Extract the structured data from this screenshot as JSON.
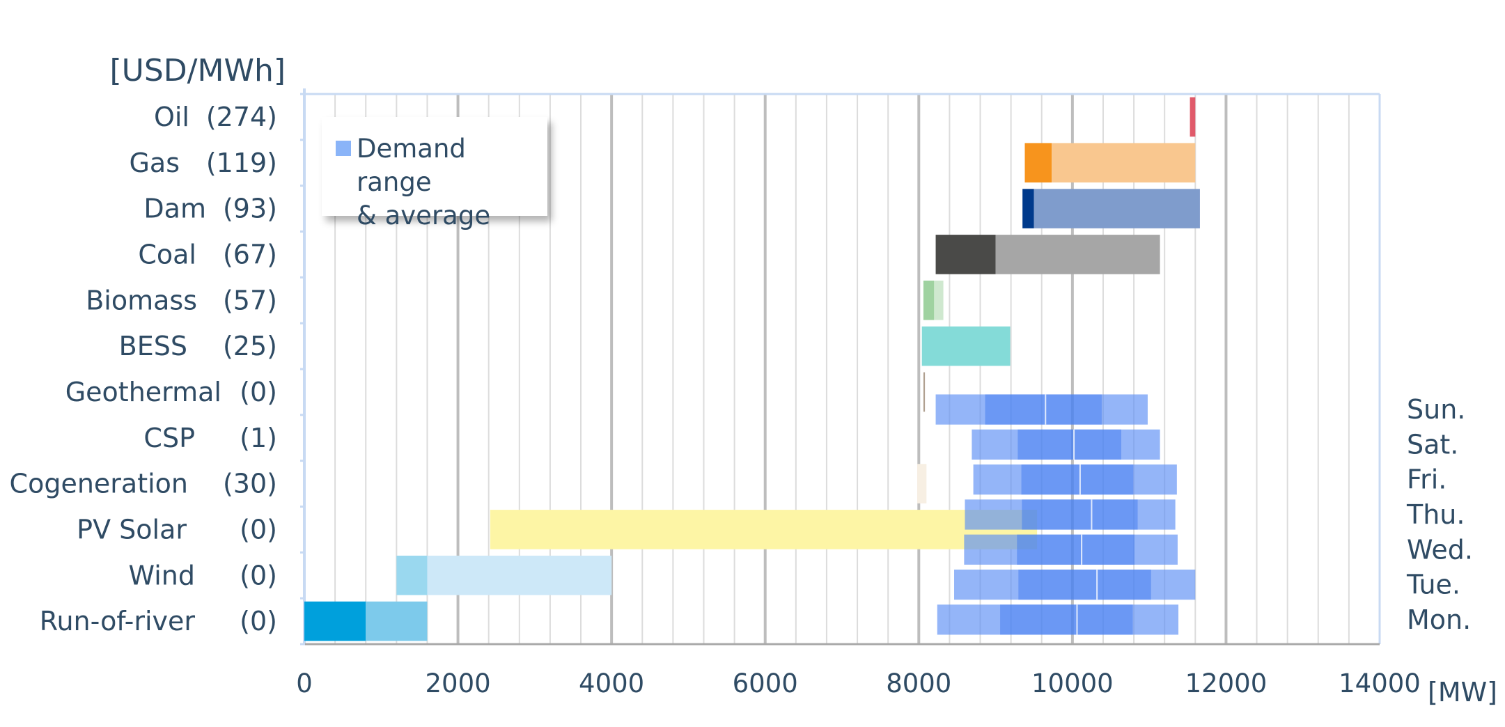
{
  "chart_data": {
    "type": "bar",
    "ylabel": "[USD/MWh]",
    "xlabel": "[MW]",
    "xlim": [
      0,
      14000
    ],
    "x_ticks": [
      "0",
      "2000",
      "4000",
      "6000",
      "8000",
      "10000",
      "12000",
      "14000"
    ],
    "grid": true,
    "legend": {
      "text_line1": "Demand range",
      "text_line2": "& average",
      "color": "#8ab4f8",
      "position": "top-left"
    },
    "categories": [
      {
        "name": "Oil",
        "price": "(274)"
      },
      {
        "name": "Gas",
        "price": "(119)"
      },
      {
        "name": "Dam",
        "price": "(93)"
      },
      {
        "name": "Coal",
        "price": "(67)"
      },
      {
        "name": "Biomass",
        "price": "(57)"
      },
      {
        "name": "BESS",
        "price": "(25)"
      },
      {
        "name": "Geothermal",
        "price": "(0)"
      },
      {
        "name": "CSP",
        "price": "(1)"
      },
      {
        "name": "Cogeneration",
        "price": "(30)"
      },
      {
        "name": "PV Solar",
        "price": "(0)"
      },
      {
        "name": "Wind",
        "price": "(0)"
      },
      {
        "name": "Run-of-river",
        "price": "(0)"
      }
    ],
    "supply_bars": [
      {
        "category": "Oil",
        "segments": [
          {
            "start": 11530,
            "end": 11600,
            "color": "#e05a6a"
          }
        ]
      },
      {
        "category": "Gas",
        "segments": [
          {
            "start": 9380,
            "end": 9730,
            "color": "#f7941d"
          },
          {
            "start": 9730,
            "end": 11600,
            "color": "#f9c78f"
          }
        ]
      },
      {
        "category": "Dam",
        "segments": [
          {
            "start": 9350,
            "end": 9500,
            "color": "#003a8c"
          },
          {
            "start": 9500,
            "end": 11660,
            "color": "#7f9ccc"
          }
        ]
      },
      {
        "category": "Coal",
        "segments": [
          {
            "start": 8220,
            "end": 9000,
            "color": "#4a4a48"
          },
          {
            "start": 9000,
            "end": 11140,
            "color": "#a6a6a6"
          }
        ]
      },
      {
        "category": "Biomass",
        "segments": [
          {
            "start": 8060,
            "end": 8200,
            "color": "#9fd2a0"
          },
          {
            "start": 8200,
            "end": 8320,
            "color": "#cfe8cf"
          }
        ]
      },
      {
        "category": "BESS",
        "segments": [
          {
            "start": 8040,
            "end": 9190,
            "color": "#84dbd8"
          }
        ]
      },
      {
        "category": "Geothermal",
        "segments": [
          {
            "start": 8060,
            "end": 8080,
            "color": "#b0a090"
          }
        ]
      },
      {
        "category": "Cogeneration",
        "segments": [
          {
            "start": 7980,
            "end": 8100,
            "color": "#f7efe3"
          }
        ]
      },
      {
        "category": "PV Solar",
        "segments": [
          {
            "start": 2420,
            "end": 9540,
            "color": "#fdf5a5"
          }
        ]
      },
      {
        "category": "Wind",
        "segments": [
          {
            "start": 1200,
            "end": 1600,
            "color": "#9ad8ef"
          },
          {
            "start": 1600,
            "end": 4000,
            "color": "#cde8f8"
          }
        ]
      },
      {
        "category": "Run-of-river",
        "segments": [
          {
            "start": 0,
            "end": 800,
            "color": "#00a0dc"
          },
          {
            "start": 800,
            "end": 1600,
            "color": "#7dcaeb"
          }
        ]
      }
    ],
    "demand": [
      {
        "day": "Sun.",
        "min": 8220,
        "avg": 9650,
        "max": 10980
      },
      {
        "day": "Sat.",
        "min": 8690,
        "avg": 10020,
        "max": 11140
      },
      {
        "day": "Fri.",
        "min": 8710,
        "avg": 10100,
        "max": 11360
      },
      {
        "day": "Thu.",
        "min": 8600,
        "avg": 10250,
        "max": 11340
      },
      {
        "day": "Wed.",
        "min": 8590,
        "avg": 10120,
        "max": 11370
      },
      {
        "day": "Tue.",
        "min": 8460,
        "avg": 10320,
        "max": 11600
      },
      {
        "day": "Mon.",
        "min": 8240,
        "avg": 10060,
        "max": 11380
      }
    ]
  }
}
